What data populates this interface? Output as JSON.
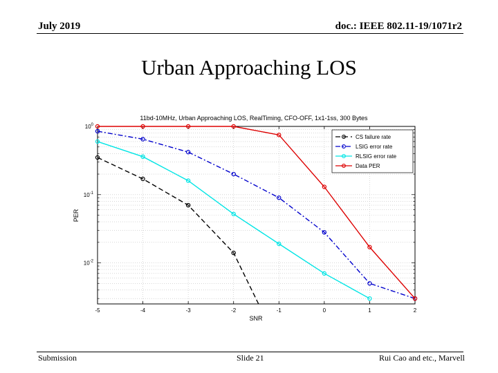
{
  "header": {
    "date": "July 2019",
    "doc": "doc.: IEEE 802.11-19/1071r2"
  },
  "slide_title": "Urban Approaching LOS",
  "footer": {
    "left": "Submission",
    "center": "Slide 21",
    "right": "Rui Cao and etc., Marvell"
  },
  "chart_data": {
    "type": "line",
    "title": "11bd-10MHz, Urban Approaching LOS, RealTiming, CFO-OFF, 1x1-1ss, 300 Bytes",
    "xlabel": "SNR",
    "ylabel": "PER",
    "xlim": [
      -5,
      2
    ],
    "ylim": [
      0.0025,
      1
    ],
    "yscale": "log",
    "xticks": [
      -5,
      -4,
      -3,
      -2,
      -1,
      0,
      1,
      2
    ],
    "xtick_labels": [
      "-5",
      "-4",
      "-3",
      "-2",
      "-1",
      "0",
      "1",
      "2"
    ],
    "yticks": [
      {
        "value": 1,
        "base": "10",
        "exp": "0"
      },
      {
        "value": 0.1,
        "base": "10",
        "exp": "-1"
      },
      {
        "value": 0.01,
        "base": "10",
        "exp": "-2"
      }
    ],
    "grid": true,
    "legend_position": "top-right",
    "series": [
      {
        "name": "CS failure rate",
        "color": "#000000",
        "dash": "dashed",
        "x": [
          -5,
          -4,
          -3,
          -2,
          -1.45
        ],
        "y": [
          0.35,
          0.17,
          0.07,
          0.014,
          0.0025
        ],
        "markers": [
          true,
          true,
          true,
          true,
          false
        ]
      },
      {
        "name": "LSIG error rate",
        "color": "#0000cc",
        "dash": "dashdot",
        "x": [
          -5,
          -4,
          -3,
          -2,
          -1,
          0,
          1,
          2
        ],
        "y": [
          0.85,
          0.65,
          0.42,
          0.2,
          0.09,
          0.028,
          0.005,
          0.003
        ],
        "markers": [
          true,
          true,
          true,
          true,
          true,
          true,
          true,
          true
        ]
      },
      {
        "name": "RLSIG error rate",
        "color": "#00e5e5",
        "dash": "solid",
        "x": [
          -5,
          -4,
          -3,
          -2,
          -1,
          0,
          1
        ],
        "y": [
          0.6,
          0.36,
          0.16,
          0.052,
          0.019,
          0.007,
          0.003
        ],
        "markers": [
          true,
          true,
          true,
          true,
          true,
          true,
          true
        ]
      },
      {
        "name": "Data PER",
        "color": "#dd0000",
        "dash": "solid",
        "x": [
          -5,
          -4,
          -3,
          -2,
          -1,
          0,
          1,
          2
        ],
        "y": [
          1.0,
          1.0,
          1.0,
          1.0,
          0.75,
          0.13,
          0.017,
          0.003
        ],
        "markers": [
          true,
          true,
          true,
          true,
          true,
          true,
          true,
          true
        ]
      }
    ]
  }
}
